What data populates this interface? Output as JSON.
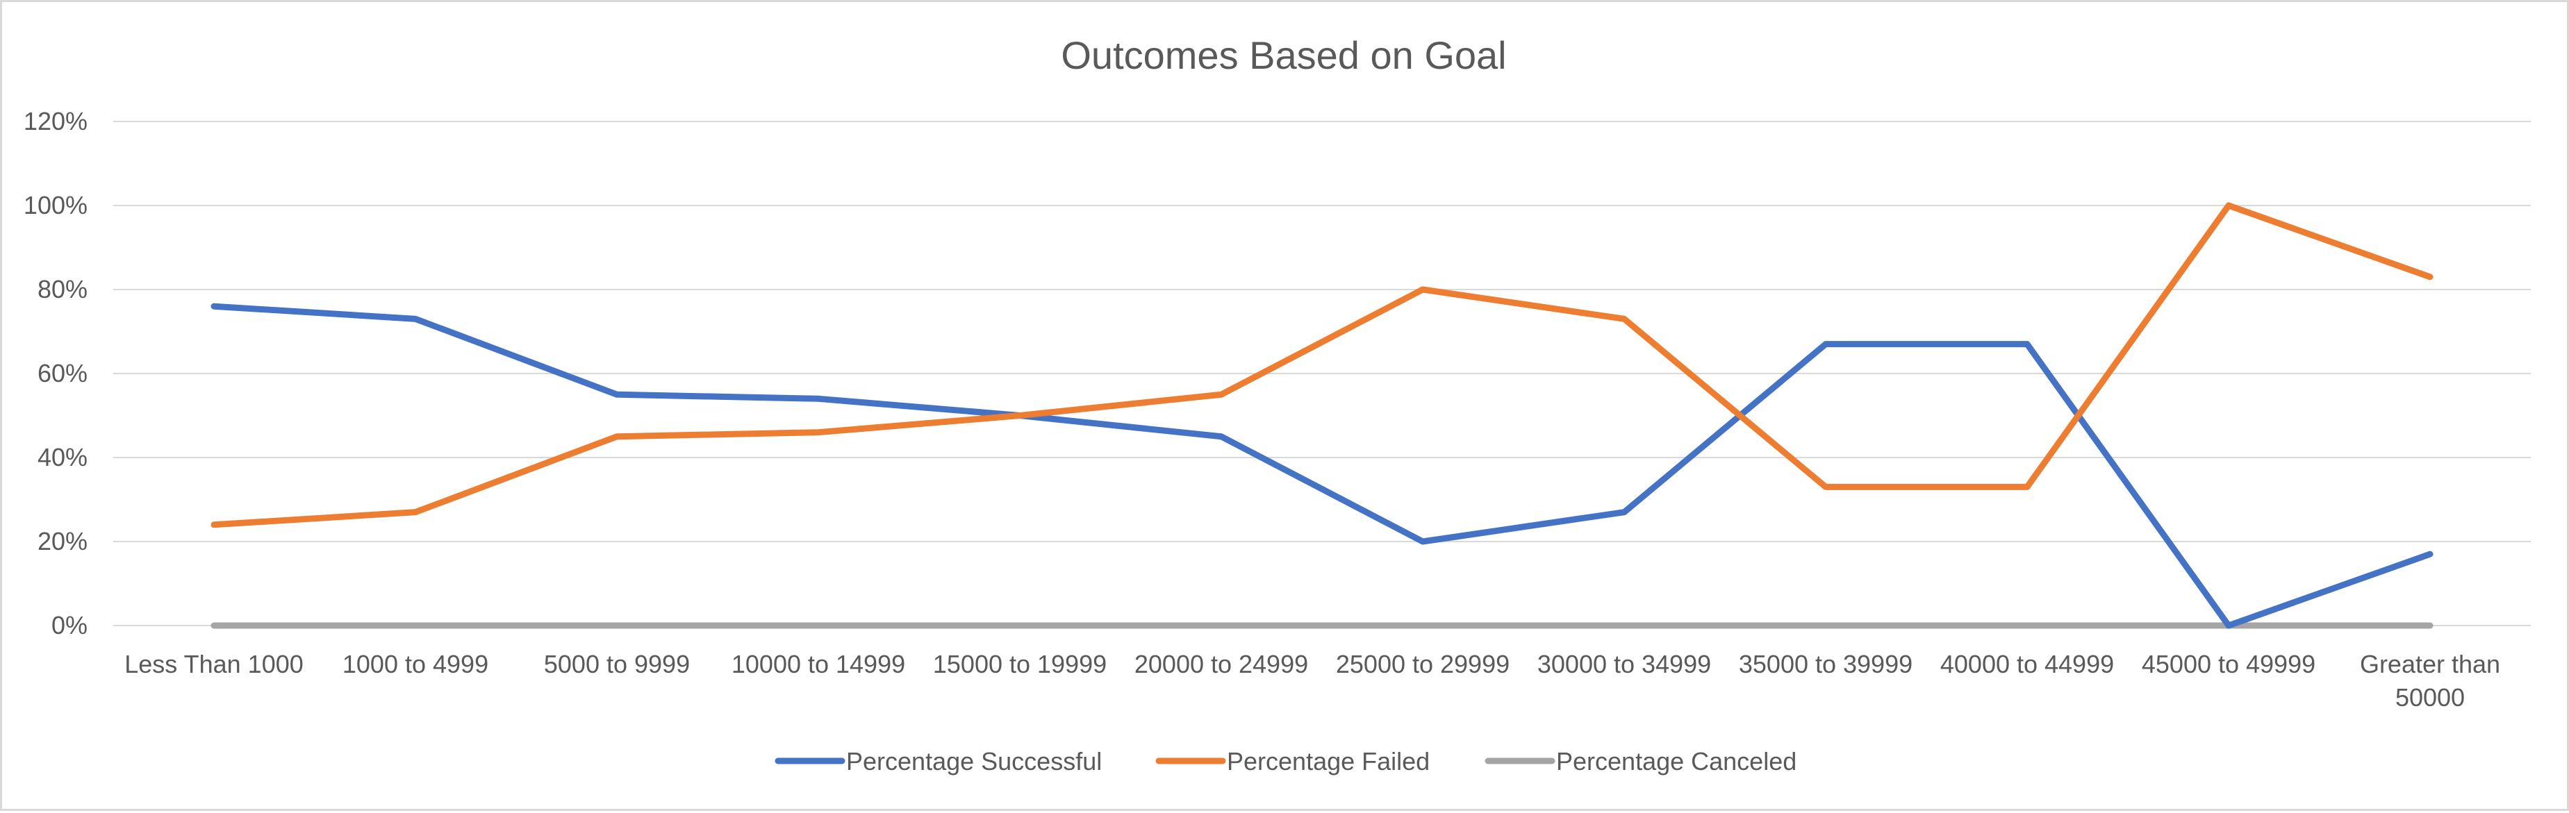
{
  "chart_data": {
    "type": "line",
    "title": "Outcomes Based on Goal",
    "categories": [
      "Less Than 1000",
      "1000 to 4999",
      "5000 to 9999",
      "10000 to 14999",
      "15000 to 19999",
      "20000 to 24999",
      "25000 to 29999",
      "30000 to 34999",
      "35000 to 39999",
      "40000 to 44999",
      "45000 to 49999",
      "Greater than 50000"
    ],
    "category_lines": [
      [
        "Less Than 1000"
      ],
      [
        "1000 to 4999"
      ],
      [
        "5000 to 9999"
      ],
      [
        "10000 to 14999"
      ],
      [
        "15000 to 19999"
      ],
      [
        "20000 to 24999"
      ],
      [
        "25000 to 29999"
      ],
      [
        "30000 to 34999"
      ],
      [
        "35000 to 39999"
      ],
      [
        "40000 to 44999"
      ],
      [
        "45000 to 49999"
      ],
      [
        "Greater than",
        "50000"
      ]
    ],
    "series": [
      {
        "name": "Percentage Successful",
        "color": "#4472C4",
        "values": [
          0.76,
          0.73,
          0.55,
          0.54,
          0.5,
          0.45,
          0.2,
          0.27,
          0.67,
          0.67,
          0.0,
          0.17
        ]
      },
      {
        "name": "Percentage Failed",
        "color": "#ED7D31",
        "values": [
          0.24,
          0.27,
          0.45,
          0.46,
          0.5,
          0.55,
          0.8,
          0.73,
          0.33,
          0.33,
          1.0,
          0.83
        ]
      },
      {
        "name": "Percentage Canceled",
        "color": "#A5A5A5",
        "values": [
          0,
          0,
          0,
          0,
          0,
          0,
          0,
          0,
          0,
          0,
          0,
          0
        ]
      }
    ],
    "ylim": [
      0,
      1.2
    ],
    "yticks": [
      "0%",
      "20%",
      "40%",
      "60%",
      "80%",
      "100%",
      "120%"
    ],
    "grid": true,
    "legend_position": "bottom"
  }
}
